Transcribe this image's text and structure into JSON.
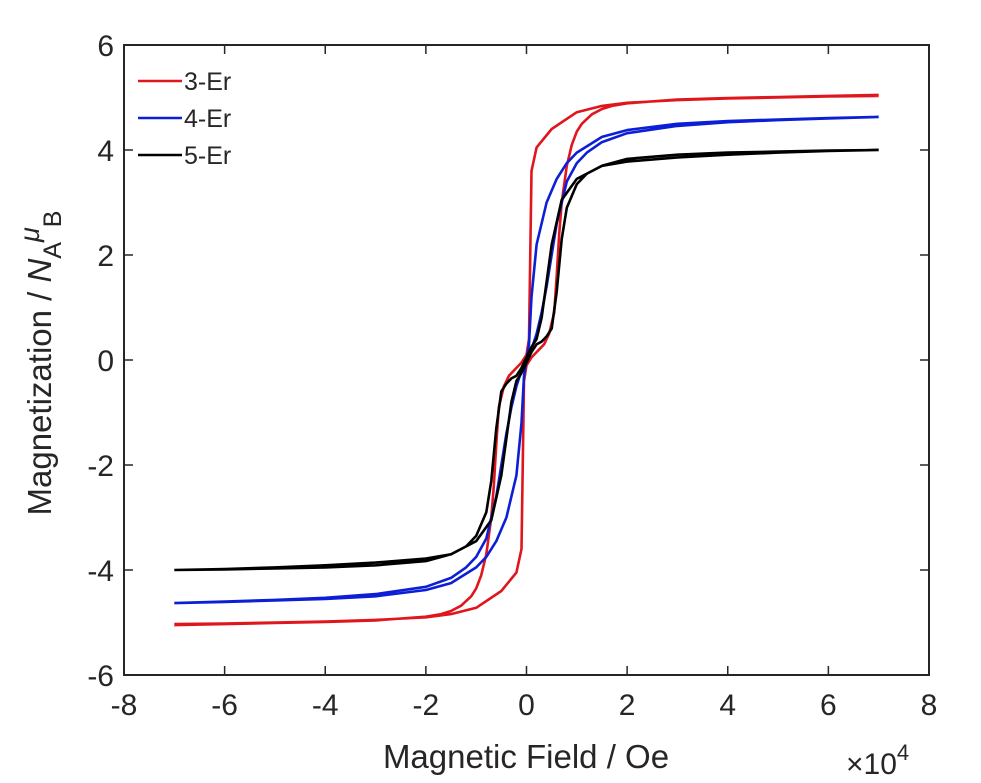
{
  "chart_data": {
    "type": "line",
    "title": "",
    "xlabel": "Magnetic Field / Oe",
    "ylabel_parts": {
      "prefix": "Magnetization /  ",
      "n": "N",
      "n_sub": "A",
      "mu": "μ",
      "mu_sub": "B"
    },
    "x_multiplier": {
      "base": "×10",
      "exponent": "4"
    },
    "xlim": [
      -8,
      8
    ],
    "ylim": [
      -6,
      6
    ],
    "x_ticks": [
      -8,
      -6,
      -4,
      -2,
      0,
      2,
      4,
      6,
      8
    ],
    "x_tick_labels": [
      "-8",
      "-6",
      "-4",
      "-2",
      "0",
      "2",
      "4",
      "6",
      "8"
    ],
    "y_ticks": [
      -6,
      -4,
      -2,
      0,
      2,
      4,
      6
    ],
    "y_tick_labels": [
      "-6",
      "-4",
      "-2",
      "0",
      "2",
      "4",
      "6"
    ],
    "grid": false,
    "legend_position": "top-left",
    "series": [
      {
        "name": "3-Er",
        "color": "#e0161d",
        "x": [
          -7,
          -6,
          -5,
          -4,
          -3,
          -2,
          -1.7,
          -1.5,
          -1.3,
          -1.1,
          -1.0,
          -0.9,
          -0.8,
          -0.7,
          -0.65,
          -0.6,
          -0.55,
          -0.45,
          -0.35,
          -0.2,
          -0.1,
          0,
          0.05,
          0.1,
          0.2,
          0.5,
          1.0,
          1.5,
          2,
          3,
          4,
          5,
          6,
          7,
          null,
          7,
          6,
          5,
          4,
          3,
          2,
          1.7,
          1.5,
          1.3,
          1.1,
          1.0,
          0.9,
          0.8,
          0.7,
          0.65,
          0.6,
          0.55,
          0.45,
          0.35,
          0.2,
          0.1,
          0,
          -0.05,
          -0.1,
          -0.2,
          -0.5,
          -1.0,
          -1.5,
          -2,
          -3,
          -4,
          -5,
          -6,
          -7
        ],
        "y": [
          -5.05,
          -5.03,
          -5.01,
          -4.99,
          -4.96,
          -4.89,
          -4.84,
          -4.78,
          -4.68,
          -4.5,
          -4.35,
          -4.1,
          -3.7,
          -3.0,
          -2.4,
          -1.6,
          -0.9,
          -0.5,
          -0.3,
          -0.15,
          -0.05,
          0.1,
          0.4,
          3.6,
          4.05,
          4.4,
          4.72,
          4.84,
          4.9,
          4.95,
          4.98,
          5.0,
          5.02,
          5.03,
          null,
          5.05,
          5.03,
          5.01,
          4.99,
          4.96,
          4.89,
          4.84,
          4.78,
          4.68,
          4.5,
          4.35,
          4.1,
          3.7,
          3.0,
          2.4,
          1.6,
          0.9,
          0.5,
          0.3,
          0.15,
          0.05,
          -0.1,
          -0.4,
          -3.6,
          -4.05,
          -4.4,
          -4.72,
          -4.84,
          -4.9,
          -4.95,
          -4.98,
          -5.0,
          -5.02,
          -5.03
        ]
      },
      {
        "name": "4-Er",
        "color": "#0d1fd6",
        "x": [
          -7,
          -6,
          -5,
          -4,
          -3,
          -2,
          -1.5,
          -1.2,
          -1.0,
          -0.8,
          -0.6,
          -0.4,
          -0.3,
          -0.2,
          -0.1,
          0,
          0.05,
          0.1,
          0.2,
          0.4,
          0.6,
          0.8,
          1.0,
          1.5,
          2,
          3,
          4,
          5,
          6,
          7,
          null,
          7,
          6,
          5,
          4,
          3,
          2,
          1.5,
          1.2,
          1.0,
          0.8,
          0.6,
          0.4,
          0.3,
          0.2,
          0.1,
          0,
          -0.05,
          -0.1,
          -0.2,
          -0.4,
          -0.6,
          -0.8,
          -1.0,
          -1.5,
          -2,
          -3,
          -4,
          -5,
          -6,
          -7
        ],
        "y": [
          -4.63,
          -4.6,
          -4.57,
          -4.53,
          -4.46,
          -4.32,
          -4.15,
          -3.95,
          -3.75,
          -3.4,
          -2.6,
          -1.4,
          -0.9,
          -0.5,
          -0.2,
          0.0,
          0.3,
          1.2,
          2.2,
          3.0,
          3.45,
          3.75,
          3.95,
          4.25,
          4.38,
          4.5,
          4.55,
          4.58,
          4.61,
          4.63,
          null,
          4.63,
          4.6,
          4.57,
          4.53,
          4.46,
          4.32,
          4.15,
          3.95,
          3.75,
          3.4,
          2.6,
          1.4,
          0.9,
          0.5,
          0.2,
          0.0,
          -0.3,
          -1.2,
          -2.2,
          -3.0,
          -3.45,
          -3.75,
          -3.95,
          -4.25,
          -4.38,
          -4.5,
          -4.55,
          -4.58,
          -4.61,
          -4.63
        ]
      },
      {
        "name": "5-Er",
        "color": "#000000",
        "x": [
          -7,
          -6,
          -5,
          -4,
          -3,
          -2,
          -1.5,
          -1.2,
          -1.0,
          -0.8,
          -0.7,
          -0.6,
          -0.5,
          -0.4,
          -0.3,
          -0.2,
          -0.1,
          0,
          0.1,
          0.2,
          0.3,
          0.5,
          0.7,
          1.0,
          1.5,
          2,
          3,
          4,
          5,
          6,
          7,
          null,
          7,
          6,
          5,
          4,
          3,
          2,
          1.5,
          1.2,
          1.0,
          0.8,
          0.7,
          0.6,
          0.5,
          0.4,
          0.3,
          0.2,
          0.1,
          0,
          -0.1,
          -0.2,
          -0.3,
          -0.5,
          -0.7,
          -1.0,
          -1.5,
          -2,
          -3,
          -4,
          -5,
          -6,
          -7
        ],
        "y": [
          -4.0,
          -3.99,
          -3.97,
          -3.95,
          -3.91,
          -3.83,
          -3.7,
          -3.55,
          -3.35,
          -2.9,
          -2.3,
          -1.3,
          -0.6,
          -0.45,
          -0.35,
          -0.3,
          -0.15,
          0.05,
          0.25,
          0.4,
          0.8,
          2.2,
          3.05,
          3.45,
          3.7,
          3.78,
          3.86,
          3.91,
          3.95,
          3.98,
          4.0,
          null,
          4.0,
          3.99,
          3.97,
          3.95,
          3.91,
          3.83,
          3.7,
          3.55,
          3.35,
          2.9,
          2.3,
          1.3,
          0.6,
          0.45,
          0.35,
          0.3,
          0.15,
          -0.05,
          -0.25,
          -0.4,
          -0.8,
          -2.2,
          -3.05,
          -3.45,
          -3.7,
          -3.78,
          -3.86,
          -3.91,
          -3.95,
          -3.98,
          -4.0
        ]
      }
    ]
  }
}
